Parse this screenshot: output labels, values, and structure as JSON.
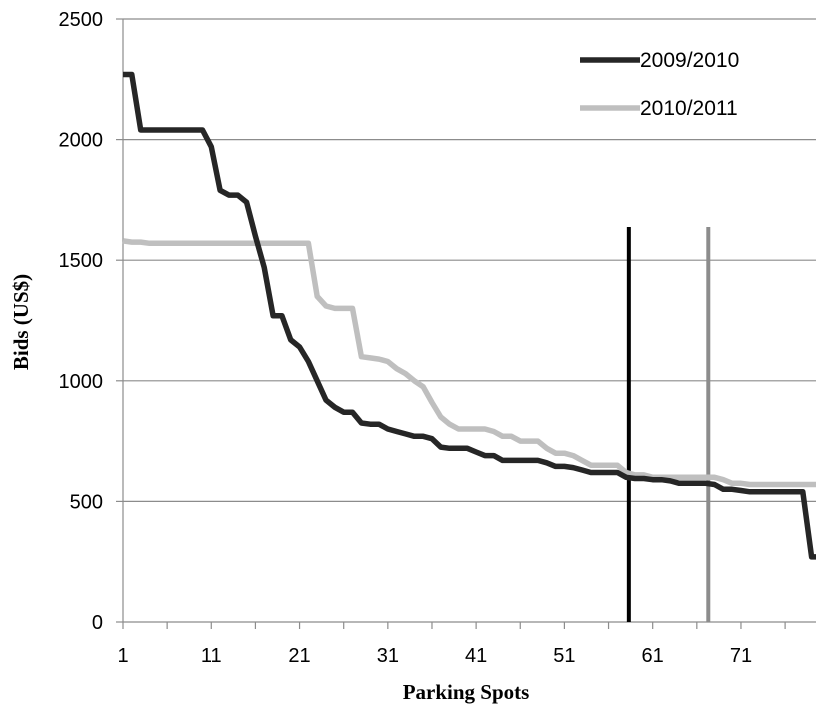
{
  "chart_data": {
    "type": "line",
    "xlabel": "Parking Spots",
    "ylabel": "Bids (US$)",
    "xlim": [
      1,
      79.5
    ],
    "ylim": [
      0,
      2500
    ],
    "x_ticks": [
      1,
      11,
      21,
      31,
      41,
      51,
      61,
      71
    ],
    "y_ticks": [
      0,
      500,
      1000,
      1500,
      2000,
      2500
    ],
    "grid": "horizontal",
    "legend_position": "top-right",
    "series": [
      {
        "name": "2009/2010",
        "color": "#262626",
        "points": [
          [
            1,
            2270
          ],
          [
            2,
            2270
          ],
          [
            3,
            2040
          ],
          [
            4,
            2040
          ],
          [
            5,
            2040
          ],
          [
            6,
            2040
          ],
          [
            7,
            2040
          ],
          [
            8,
            2040
          ],
          [
            9,
            2040
          ],
          [
            10,
            2040
          ],
          [
            11,
            1970
          ],
          [
            12,
            1790
          ],
          [
            13,
            1770
          ],
          [
            14,
            1770
          ],
          [
            15,
            1740
          ],
          [
            16,
            1600
          ],
          [
            17,
            1470
          ],
          [
            18,
            1270
          ],
          [
            19,
            1270
          ],
          [
            20,
            1170
          ],
          [
            21,
            1140
          ],
          [
            22,
            1080
          ],
          [
            23,
            1000
          ],
          [
            24,
            920
          ],
          [
            25,
            890
          ],
          [
            26,
            870
          ],
          [
            27,
            870
          ],
          [
            28,
            825
          ],
          [
            29,
            820
          ],
          [
            30,
            820
          ],
          [
            31,
            800
          ],
          [
            32,
            790
          ],
          [
            33,
            780
          ],
          [
            34,
            770
          ],
          [
            35,
            770
          ],
          [
            36,
            760
          ],
          [
            37,
            725
          ],
          [
            38,
            720
          ],
          [
            39,
            720
          ],
          [
            40,
            720
          ],
          [
            41,
            705
          ],
          [
            42,
            690
          ],
          [
            43,
            690
          ],
          [
            44,
            670
          ],
          [
            45,
            670
          ],
          [
            46,
            670
          ],
          [
            47,
            670
          ],
          [
            48,
            670
          ],
          [
            49,
            660
          ],
          [
            50,
            645
          ],
          [
            51,
            645
          ],
          [
            52,
            640
          ],
          [
            53,
            630
          ],
          [
            54,
            620
          ],
          [
            55,
            620
          ],
          [
            56,
            620
          ],
          [
            57,
            620
          ],
          [
            58,
            600
          ],
          [
            59,
            595
          ],
          [
            60,
            595
          ],
          [
            61,
            590
          ],
          [
            62,
            590
          ],
          [
            63,
            585
          ],
          [
            64,
            575
          ],
          [
            65,
            575
          ],
          [
            66,
            575
          ],
          [
            67,
            575
          ],
          [
            68,
            570
          ],
          [
            69,
            550
          ],
          [
            70,
            550
          ],
          [
            71,
            545
          ],
          [
            72,
            540
          ],
          [
            73,
            540
          ],
          [
            74,
            540
          ],
          [
            75,
            540
          ],
          [
            76,
            540
          ],
          [
            77,
            540
          ],
          [
            78,
            540
          ],
          [
            79,
            270
          ],
          [
            79.5,
            270
          ]
        ]
      },
      {
        "name": "2010/2011",
        "color": "#bfbfbf",
        "points": [
          [
            1,
            1580
          ],
          [
            2,
            1575
          ],
          [
            3,
            1575
          ],
          [
            4,
            1570
          ],
          [
            5,
            1570
          ],
          [
            6,
            1570
          ],
          [
            7,
            1570
          ],
          [
            8,
            1570
          ],
          [
            9,
            1570
          ],
          [
            10,
            1570
          ],
          [
            11,
            1570
          ],
          [
            12,
            1570
          ],
          [
            13,
            1570
          ],
          [
            14,
            1570
          ],
          [
            15,
            1570
          ],
          [
            16,
            1570
          ],
          [
            17,
            1570
          ],
          [
            18,
            1570
          ],
          [
            19,
            1570
          ],
          [
            20,
            1570
          ],
          [
            21,
            1570
          ],
          [
            22,
            1570
          ],
          [
            23,
            1350
          ],
          [
            24,
            1310
          ],
          [
            25,
            1300
          ],
          [
            26,
            1300
          ],
          [
            27,
            1300
          ],
          [
            28,
            1100
          ],
          [
            29,
            1095
          ],
          [
            30,
            1090
          ],
          [
            31,
            1080
          ],
          [
            32,
            1050
          ],
          [
            33,
            1030
          ],
          [
            34,
            1000
          ],
          [
            35,
            975
          ],
          [
            36,
            910
          ],
          [
            37,
            850
          ],
          [
            38,
            820
          ],
          [
            39,
            800
          ],
          [
            40,
            800
          ],
          [
            41,
            800
          ],
          [
            42,
            800
          ],
          [
            43,
            790
          ],
          [
            44,
            770
          ],
          [
            45,
            770
          ],
          [
            46,
            750
          ],
          [
            47,
            750
          ],
          [
            48,
            750
          ],
          [
            49,
            720
          ],
          [
            50,
            700
          ],
          [
            51,
            700
          ],
          [
            52,
            690
          ],
          [
            53,
            670
          ],
          [
            54,
            650
          ],
          [
            55,
            650
          ],
          [
            56,
            650
          ],
          [
            57,
            650
          ],
          [
            58,
            620
          ],
          [
            59,
            610
          ],
          [
            60,
            610
          ],
          [
            61,
            600
          ],
          [
            62,
            600
          ],
          [
            63,
            600
          ],
          [
            64,
            600
          ],
          [
            65,
            600
          ],
          [
            66,
            600
          ],
          [
            67,
            600
          ],
          [
            68,
            600
          ],
          [
            69,
            590
          ],
          [
            70,
            575
          ],
          [
            71,
            575
          ],
          [
            72,
            570
          ],
          [
            73,
            570
          ],
          [
            74,
            570
          ],
          [
            75,
            570
          ],
          [
            76,
            570
          ],
          [
            77,
            570
          ],
          [
            78,
            570
          ],
          [
            79,
            570
          ],
          [
            79.5,
            570
          ]
        ]
      }
    ],
    "vertical_markers": [
      {
        "x": 58.3,
        "color": "#000000"
      },
      {
        "x": 67.3,
        "color": "#8c8c8c"
      }
    ]
  }
}
